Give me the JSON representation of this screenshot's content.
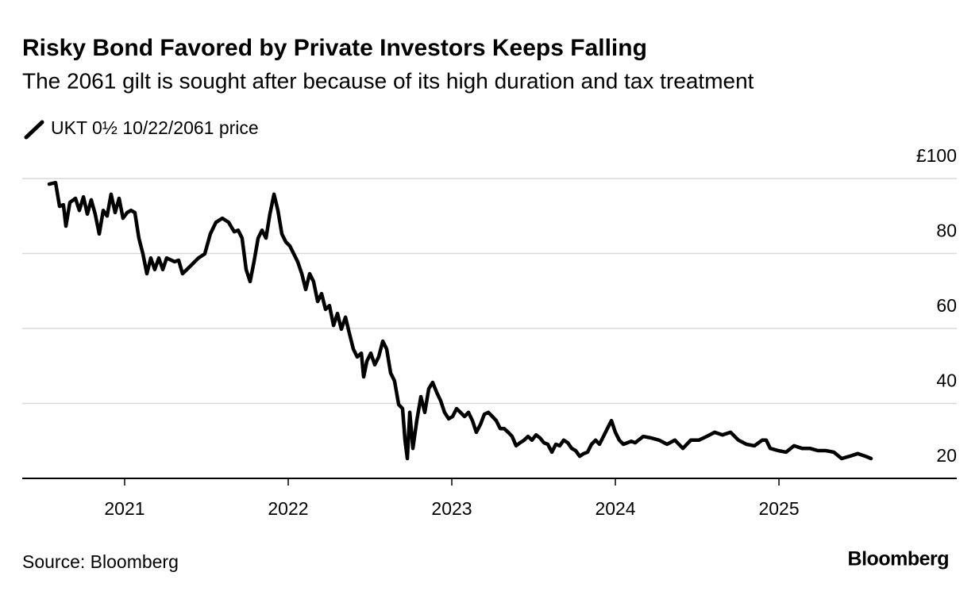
{
  "chart_data": {
    "type": "line",
    "title": "Risky Bond Favored by Private Investors Keeps Falling",
    "subtitle": "The 2061 gilt is sought after because of its high duration and tax treatment",
    "source": "Source: Bloomberg",
    "brand": "Bloomberg",
    "xlim": [
      2020.374,
      2026.087
    ],
    "xticks": [
      2021,
      2022,
      2023,
      2024,
      2025
    ],
    "ylim": [
      20,
      100
    ],
    "yticks": [
      20,
      40,
      60,
      80,
      {
        "value": 100,
        "label": "£100"
      }
    ],
    "grid": true,
    "x": [
      2020.539,
      2020.578,
      2020.602,
      2020.626,
      2020.641,
      2020.665,
      2020.699,
      2020.723,
      2020.748,
      2020.772,
      2020.796,
      2020.82,
      2020.845,
      2020.869,
      2020.893,
      2020.917,
      2020.942,
      2020.966,
      2020.99,
      2021.015,
      2021.039,
      2021.063,
      2021.087,
      2021.112,
      2021.136,
      2021.16,
      2021.184,
      2021.209,
      2021.233,
      2021.257,
      2021.306,
      2021.33,
      2021.354,
      2021.403,
      2021.451,
      2021.49,
      2021.524,
      2021.558,
      2021.597,
      2021.636,
      2021.67,
      2021.694,
      2021.718,
      2021.743,
      2021.767,
      2021.791,
      2021.816,
      2021.84,
      2021.864,
      2021.888,
      2021.913,
      2021.937,
      2021.961,
      2021.985,
      2022.01,
      2022.034,
      2022.058,
      2022.083,
      2022.107,
      2022.131,
      2022.155,
      2022.18,
      2022.204,
      2022.228,
      2022.252,
      2022.277,
      2022.301,
      2022.325,
      2022.35,
      2022.374,
      2022.398,
      2022.422,
      2022.447,
      2022.461,
      2022.481,
      2022.505,
      2022.529,
      2022.553,
      2022.578,
      2022.602,
      2022.626,
      2022.65,
      2022.675,
      2022.699,
      2022.714,
      2022.728,
      2022.743,
      2022.762,
      2022.786,
      2022.811,
      2022.835,
      2022.859,
      2022.883,
      2022.908,
      2022.932,
      2022.956,
      2022.981,
      2023.005,
      2023.029,
      2023.053,
      2023.078,
      2023.102,
      2023.126,
      2023.15,
      2023.175,
      2023.199,
      2023.223,
      2023.248,
      2023.272,
      2023.296,
      2023.32,
      2023.345,
      2023.369,
      2023.393,
      2023.417,
      2023.442,
      2023.466,
      2023.49,
      2023.515,
      2023.539,
      2023.563,
      2023.587,
      2023.612,
      2023.636,
      2023.66,
      2023.684,
      2023.709,
      2023.733,
      2023.757,
      2023.782,
      2023.806,
      2023.83,
      2023.854,
      2023.879,
      2023.903,
      2023.927,
      2023.951,
      2023.976,
      2024.0,
      2024.024,
      2024.049,
      2024.073,
      2024.097,
      2024.121,
      2024.17,
      2024.218,
      2024.267,
      2024.316,
      2024.364,
      2024.413,
      2024.461,
      2024.51,
      2024.558,
      2024.607,
      2024.655,
      2024.704,
      2024.752,
      2024.801,
      2024.85,
      2024.898,
      2024.922,
      2024.947,
      2024.995,
      2025.044,
      2025.092,
      2025.141,
      2025.189,
      2025.238,
      2025.286,
      2025.335,
      2025.383,
      2025.432,
      2025.481,
      2025.529,
      2025.563
    ],
    "series": [
      {
        "name": "UKT 0½ 10/22/2061 price",
        "color": "#000000",
        "values": [
          98.5,
          98.9,
          92.6,
          93.0,
          87.3,
          93.6,
          94.7,
          91.5,
          95.1,
          90.5,
          94.3,
          90.5,
          85.2,
          91.5,
          90.0,
          95.8,
          90.9,
          94.7,
          89.4,
          90.9,
          91.5,
          90.9,
          84.1,
          79.9,
          74.6,
          78.8,
          75.7,
          78.8,
          75.7,
          78.8,
          77.8,
          78.2,
          74.6,
          76.7,
          78.8,
          79.9,
          85.2,
          88.3,
          89.4,
          88.3,
          85.8,
          86.2,
          84.1,
          75.7,
          72.5,
          77.8,
          84.1,
          86.2,
          84.1,
          90.5,
          95.8,
          91.5,
          85.2,
          83.1,
          82.0,
          79.9,
          77.8,
          74.6,
          70.4,
          74.6,
          72.5,
          67.2,
          69.3,
          65.1,
          66.1,
          60.8,
          64.0,
          59.8,
          63.0,
          58.7,
          54.5,
          52.4,
          53.4,
          47.1,
          51.3,
          53.4,
          50.3,
          52.4,
          56.6,
          54.5,
          48.1,
          46.0,
          39.7,
          38.6,
          30.2,
          25.3,
          37.6,
          28.0,
          35.4,
          41.8,
          37.6,
          43.9,
          45.6,
          42.9,
          40.7,
          37.6,
          35.9,
          36.5,
          38.6,
          37.6,
          36.5,
          37.6,
          35.4,
          32.3,
          34.4,
          37.1,
          37.6,
          36.5,
          35.4,
          33.3,
          33.3,
          32.3,
          31.2,
          28.7,
          29.5,
          30.2,
          31.2,
          30.2,
          31.6,
          30.8,
          29.5,
          29.1,
          27.0,
          29.1,
          28.7,
          30.2,
          29.5,
          28.0,
          27.4,
          25.9,
          26.6,
          27.0,
          29.1,
          30.2,
          29.1,
          31.2,
          33.3,
          35.4,
          32.3,
          30.2,
          29.1,
          29.5,
          29.9,
          29.5,
          31.2,
          30.8,
          30.2,
          29.1,
          30.2,
          28.0,
          30.2,
          30.2,
          31.2,
          32.3,
          31.6,
          32.3,
          30.2,
          29.1,
          28.7,
          30.2,
          30.2,
          28.0,
          27.4,
          27.0,
          28.7,
          28.0,
          28.0,
          27.4,
          27.4,
          27.0,
          25.3,
          25.9,
          26.6,
          25.9,
          25.3
        ]
      }
    ]
  }
}
